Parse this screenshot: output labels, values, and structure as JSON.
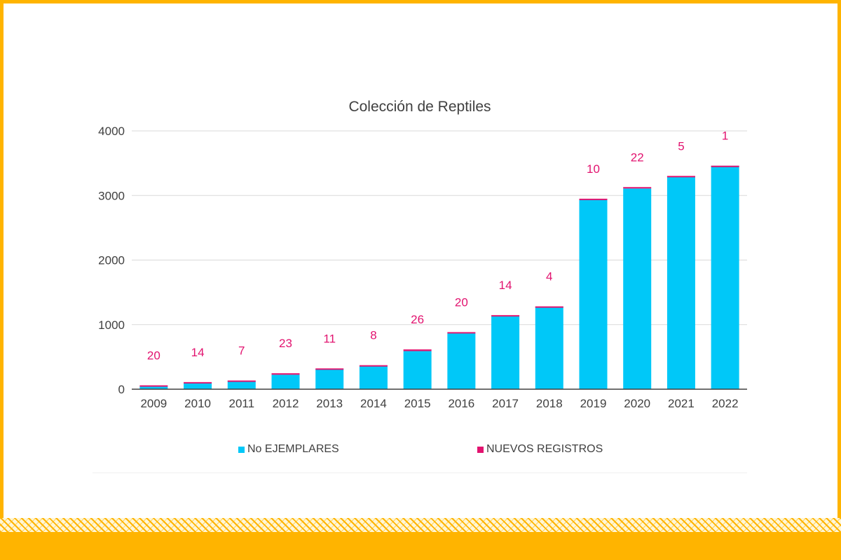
{
  "colors": {
    "frame": "#ffb400",
    "primary_series": "#00c8f8",
    "secondary_series": "#e2136f",
    "axis_text": "#404040",
    "grid": "#d9d9d9"
  },
  "chart_data": {
    "type": "bar",
    "stacked": true,
    "title": "Colección de Reptiles",
    "xlabel": "",
    "ylabel": "",
    "categories": [
      "2009",
      "2010",
      "2011",
      "2012",
      "2013",
      "2014",
      "2015",
      "2016",
      "2017",
      "2018",
      "2019",
      "2020",
      "2021",
      "2022"
    ],
    "series": [
      {
        "name": "No EJEMPLARES",
        "color": "#00c8f8",
        "values": [
          40,
          96,
          128,
          224,
          311,
          364,
          590,
          864,
          1133,
          1279,
          2940,
          3108,
          3298,
          3460
        ]
      },
      {
        "name": "NUEVOS REGISTROS",
        "color": "#e2136f",
        "values": [
          20,
          14,
          7,
          23,
          11,
          8,
          26,
          20,
          14,
          4,
          10,
          22,
          5,
          1
        ]
      }
    ],
    "data_labels": [
      "20",
      "14",
      "7",
      "23",
      "11",
      "8",
      "26",
      "20",
      "14",
      "4",
      "10",
      "22",
      "5",
      "1"
    ],
    "yticks": [
      "0",
      "1000",
      "2000",
      "3000",
      "4000"
    ],
    "ylim": [
      0,
      4000
    ],
    "grid": true,
    "legend_position": "bottom"
  }
}
